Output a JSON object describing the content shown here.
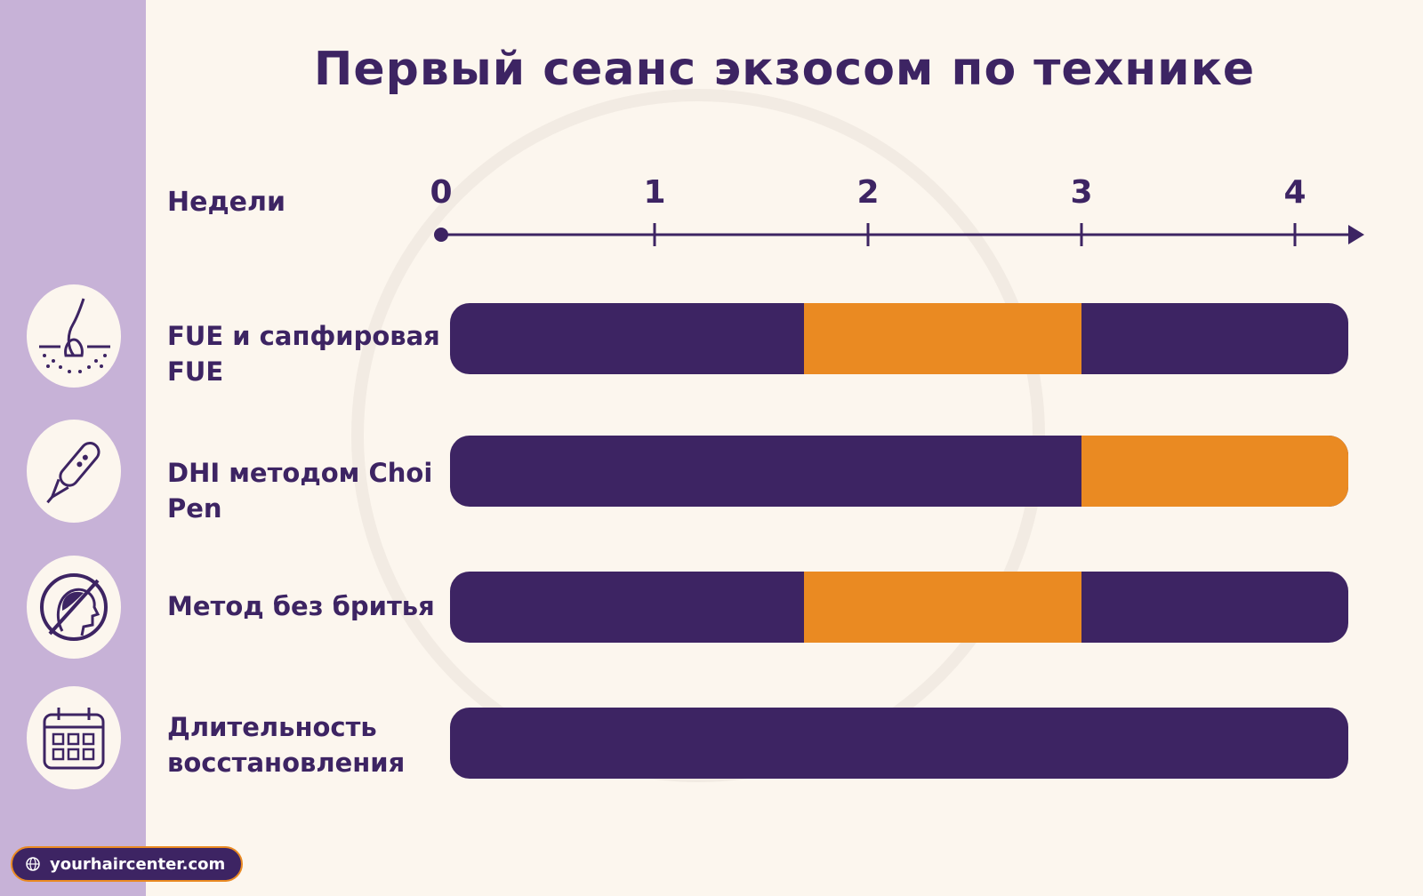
{
  "title": "Первый сеанс экзосом по технике",
  "site": "yourhaircenter.com",
  "icons": [
    "hair-follicle-icon",
    "choi-pen-icon",
    "no-shave-icon",
    "calendar-icon"
  ],
  "colors": {
    "sidebar": "#c7b2d7",
    "background": "#fcf6ee",
    "base_bar": "#3d2463",
    "highlight": "#ea8a22",
    "text": "#3d2463"
  },
  "chart_data": {
    "type": "bar",
    "orientation": "horizontal",
    "xlabel": "Недели",
    "xticks": [
      "0",
      "1",
      "2",
      "3",
      "4"
    ],
    "xlim": [
      0,
      4.25
    ],
    "categories": [
      "FUE и сапфировая FUE",
      "DHI методом Choi Pen",
      "Метод без бритья",
      "Длительность\nвосстановления"
    ],
    "bars": [
      {
        "category": "FUE и сапфировая FUE",
        "total": [
          0,
          4.2
        ],
        "highlight": [
          1.7,
          3.0
        ]
      },
      {
        "category": "DHI методом Choi Pen",
        "total": [
          0,
          4.2
        ],
        "highlight": [
          3.0,
          4.2
        ]
      },
      {
        "category": "Метод без бритья",
        "total": [
          0,
          4.2
        ],
        "highlight": [
          1.7,
          3.0
        ]
      },
      {
        "category": "Длительность\nвосстановления",
        "total": [
          0,
          4.2
        ],
        "highlight": null
      }
    ]
  }
}
